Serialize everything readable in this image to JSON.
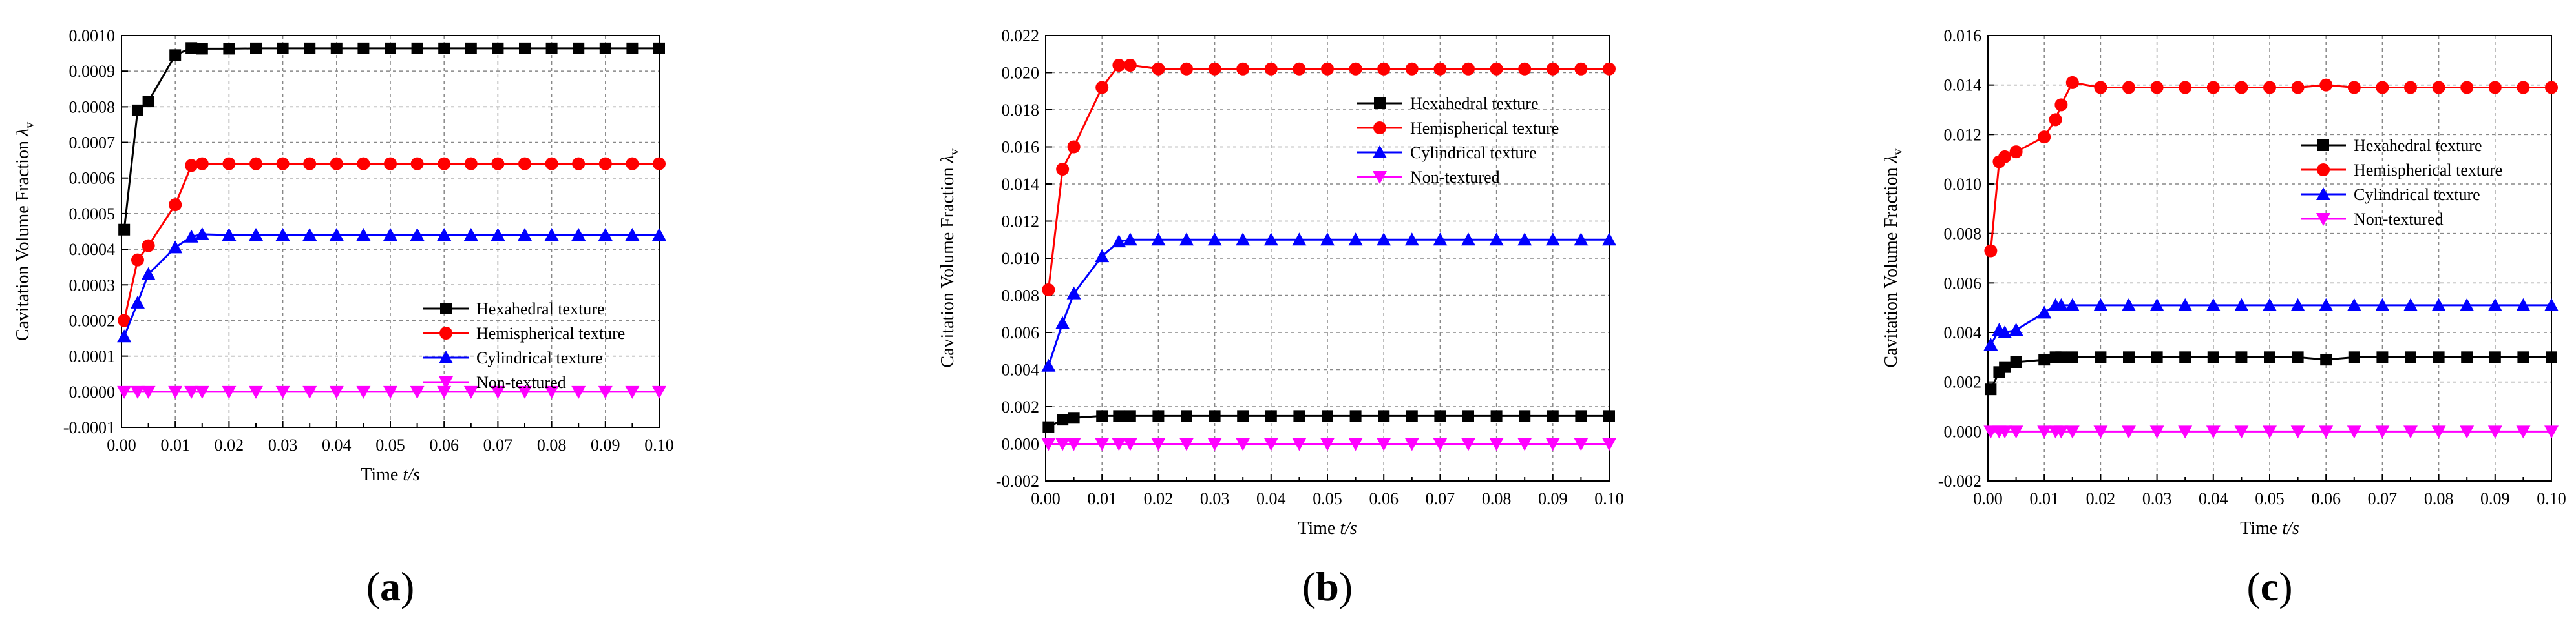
{
  "chart_data": [
    {
      "type": "line",
      "panel_label": "(a)",
      "panel_letter": "a",
      "xlabel": "Time t/s",
      "xlabel_text": "Time ",
      "xlabel_var": "t/s",
      "ylabel": "Cavitation Volume Fraction λv",
      "ylabel_text": "Cavitation Volume Fraction ",
      "ylabel_sym": "λ",
      "ylabel_sub": "v",
      "xlim": [
        0.0,
        0.1
      ],
      "ylim": [
        -0.0001,
        0.001
      ],
      "xticks": [
        0.0,
        0.01,
        0.02,
        0.03,
        0.04,
        0.05,
        0.06,
        0.07,
        0.08,
        0.09,
        0.1
      ],
      "xtick_labels": [
        "0.00",
        "0.01",
        "0.02",
        "0.03",
        "0.04",
        "0.05",
        "0.06",
        "0.07",
        "0.08",
        "0.09",
        "0.10"
      ],
      "yticks": [
        -0.0001,
        0.0,
        0.0001,
        0.0002,
        0.0003,
        0.0004,
        0.0005,
        0.0006,
        0.0007,
        0.0008,
        0.0009,
        0.001
      ],
      "ytick_labels": [
        "-0.0001",
        "0.0000",
        "0.0001",
        "0.0002",
        "0.0003",
        "0.0004",
        "0.0005",
        "0.0006",
        "0.0007",
        "0.0008",
        "0.0009",
        "0.0010"
      ],
      "grid": true,
      "legend_position": "lower-right",
      "series": [
        {
          "name": "Hexahedral texture",
          "color": "#000000",
          "marker": "square",
          "x": [
            0.0005,
            0.003,
            0.005,
            0.01,
            0.013,
            0.015,
            0.02,
            0.025,
            0.03,
            0.035,
            0.04,
            0.045,
            0.05,
            0.055,
            0.06,
            0.065,
            0.07,
            0.075,
            0.08,
            0.085,
            0.09,
            0.095,
            0.1
          ],
          "y": [
            0.000455,
            0.00079,
            0.000815,
            0.000945,
            0.000965,
            0.000963,
            0.000963,
            0.000964,
            0.000964,
            0.000964,
            0.000964,
            0.000964,
            0.000964,
            0.000964,
            0.000964,
            0.000964,
            0.000964,
            0.000964,
            0.000964,
            0.000964,
            0.000964,
            0.000964,
            0.000964
          ]
        },
        {
          "name": "Hemispherical texture",
          "color": "#ff0000",
          "marker": "circle",
          "x": [
            0.0005,
            0.003,
            0.005,
            0.01,
            0.013,
            0.015,
            0.02,
            0.025,
            0.03,
            0.035,
            0.04,
            0.045,
            0.05,
            0.055,
            0.06,
            0.065,
            0.07,
            0.075,
            0.08,
            0.085,
            0.09,
            0.095,
            0.1
          ],
          "y": [
            0.0002,
            0.00037,
            0.00041,
            0.000525,
            0.000635,
            0.00064,
            0.00064,
            0.00064,
            0.00064,
            0.00064,
            0.00064,
            0.00064,
            0.00064,
            0.00064,
            0.00064,
            0.00064,
            0.00064,
            0.00064,
            0.00064,
            0.00064,
            0.00064,
            0.00064,
            0.00064
          ]
        },
        {
          "name": "Cylindrical texture",
          "color": "#0000ff",
          "marker": "triangle-up",
          "x": [
            0.0005,
            0.003,
            0.005,
            0.01,
            0.013,
            0.015,
            0.02,
            0.025,
            0.03,
            0.035,
            0.04,
            0.045,
            0.05,
            0.055,
            0.06,
            0.065,
            0.07,
            0.075,
            0.08,
            0.085,
            0.09,
            0.095,
            0.1
          ],
          "y": [
            0.000155,
            0.00025,
            0.00033,
            0.000405,
            0.000435,
            0.000442,
            0.00044,
            0.00044,
            0.00044,
            0.00044,
            0.00044,
            0.00044,
            0.00044,
            0.00044,
            0.00044,
            0.00044,
            0.00044,
            0.00044,
            0.00044,
            0.00044,
            0.00044,
            0.00044,
            0.00044
          ]
        },
        {
          "name": "Non-textured",
          "color": "#ff00ff",
          "marker": "triangle-down",
          "x": [
            0.0005,
            0.003,
            0.005,
            0.01,
            0.013,
            0.015,
            0.02,
            0.025,
            0.03,
            0.035,
            0.04,
            0.045,
            0.05,
            0.055,
            0.06,
            0.065,
            0.07,
            0.075,
            0.08,
            0.085,
            0.09,
            0.095,
            0.1
          ],
          "y": [
            0,
            0,
            0,
            0,
            0,
            0,
            0,
            0,
            0,
            0,
            0,
            0,
            0,
            0,
            0,
            0,
            0,
            0,
            0,
            0,
            0,
            0,
            0
          ]
        }
      ]
    },
    {
      "type": "line",
      "panel_label": "(b)",
      "panel_letter": "b",
      "xlabel": "Time t/s",
      "xlabel_text": "Time ",
      "xlabel_var": "t/s",
      "ylabel": "Cavitation Volume Fraction λv",
      "ylabel_text": "Cavitation Volume Fraction ",
      "ylabel_sym": "λ",
      "ylabel_sub": "v",
      "xlim": [
        0.0,
        0.1
      ],
      "ylim": [
        -0.002,
        0.022
      ],
      "xticks": [
        0.0,
        0.01,
        0.02,
        0.03,
        0.04,
        0.05,
        0.06,
        0.07,
        0.08,
        0.09,
        0.1
      ],
      "xtick_labels": [
        "0.00",
        "0.01",
        "0.02",
        "0.03",
        "0.04",
        "0.05",
        "0.06",
        "0.07",
        "0.08",
        "0.09",
        "0.10"
      ],
      "yticks": [
        -0.002,
        0.0,
        0.002,
        0.004,
        0.006,
        0.008,
        0.01,
        0.012,
        0.014,
        0.016,
        0.018,
        0.02,
        0.022
      ],
      "ytick_labels": [
        "-0.002",
        "0.000",
        "0.002",
        "0.004",
        "0.006",
        "0.008",
        "0.010",
        "0.012",
        "0.014",
        "0.016",
        "0.018",
        "0.020",
        "0.022"
      ],
      "grid": true,
      "legend_position": "upper-right",
      "series": [
        {
          "name": "Hexahedral texture",
          "color": "#000000",
          "marker": "square",
          "x": [
            0.0005,
            0.003,
            0.005,
            0.01,
            0.013,
            0.015,
            0.02,
            0.025,
            0.03,
            0.035,
            0.04,
            0.045,
            0.05,
            0.055,
            0.06,
            0.065,
            0.07,
            0.075,
            0.08,
            0.085,
            0.09,
            0.095,
            0.1
          ],
          "y": [
            0.0009,
            0.0013,
            0.0014,
            0.0015,
            0.0015,
            0.0015,
            0.0015,
            0.0015,
            0.0015,
            0.0015,
            0.0015,
            0.0015,
            0.0015,
            0.0015,
            0.0015,
            0.0015,
            0.0015,
            0.0015,
            0.0015,
            0.0015,
            0.0015,
            0.0015,
            0.0015
          ]
        },
        {
          "name": "Hemispherical texture",
          "color": "#ff0000",
          "marker": "circle",
          "x": [
            0.0005,
            0.003,
            0.005,
            0.01,
            0.013,
            0.015,
            0.02,
            0.025,
            0.03,
            0.035,
            0.04,
            0.045,
            0.05,
            0.055,
            0.06,
            0.065,
            0.07,
            0.075,
            0.08,
            0.085,
            0.09,
            0.095,
            0.1
          ],
          "y": [
            0.0083,
            0.0148,
            0.016,
            0.0192,
            0.0204,
            0.0204,
            0.0202,
            0.0202,
            0.0202,
            0.0202,
            0.0202,
            0.0202,
            0.0202,
            0.0202,
            0.0202,
            0.0202,
            0.0202,
            0.0202,
            0.0202,
            0.0202,
            0.0202,
            0.0202,
            0.0202
          ]
        },
        {
          "name": "Cylindrical texture",
          "color": "#0000ff",
          "marker": "triangle-up",
          "x": [
            0.0005,
            0.003,
            0.005,
            0.01,
            0.013,
            0.015,
            0.02,
            0.025,
            0.03,
            0.035,
            0.04,
            0.045,
            0.05,
            0.055,
            0.06,
            0.065,
            0.07,
            0.075,
            0.08,
            0.085,
            0.09,
            0.095,
            0.1
          ],
          "y": [
            0.0042,
            0.0065,
            0.0081,
            0.0101,
            0.0109,
            0.011,
            0.011,
            0.011,
            0.011,
            0.011,
            0.011,
            0.011,
            0.011,
            0.011,
            0.011,
            0.011,
            0.011,
            0.011,
            0.011,
            0.011,
            0.011,
            0.011,
            0.011
          ]
        },
        {
          "name": "Non-textured",
          "color": "#ff00ff",
          "marker": "triangle-down",
          "x": [
            0.0005,
            0.003,
            0.005,
            0.01,
            0.013,
            0.015,
            0.02,
            0.025,
            0.03,
            0.035,
            0.04,
            0.045,
            0.05,
            0.055,
            0.06,
            0.065,
            0.07,
            0.075,
            0.08,
            0.085,
            0.09,
            0.095,
            0.1
          ],
          "y": [
            0,
            0,
            0,
            0,
            0,
            0,
            0,
            0,
            0,
            0,
            0,
            0,
            0,
            0,
            0,
            0,
            0,
            0,
            0,
            0,
            0,
            0,
            0
          ]
        }
      ]
    },
    {
      "type": "line",
      "panel_label": "(c)",
      "panel_letter": "c",
      "xlabel": "Time t/s",
      "xlabel_text": "Time ",
      "xlabel_var": "t/s",
      "ylabel": "Cavitation Volume Fraction λv",
      "ylabel_text": "Cavitation Volume Fraction ",
      "ylabel_sym": "λ",
      "ylabel_sub": "v",
      "xlim": [
        0.0,
        0.1
      ],
      "ylim": [
        -0.002,
        0.016
      ],
      "xticks": [
        0.0,
        0.01,
        0.02,
        0.03,
        0.04,
        0.05,
        0.06,
        0.07,
        0.08,
        0.09,
        0.1
      ],
      "xtick_labels": [
        "0.00",
        "0.01",
        "0.02",
        "0.03",
        "0.04",
        "0.05",
        "0.06",
        "0.07",
        "0.08",
        "0.09",
        "0.10"
      ],
      "yticks": [
        -0.002,
        0.0,
        0.002,
        0.004,
        0.006,
        0.008,
        0.01,
        0.012,
        0.014,
        0.016
      ],
      "ytick_labels": [
        "-0.002",
        "0.000",
        "0.002",
        "0.004",
        "0.006",
        "0.008",
        "0.010",
        "0.012",
        "0.014",
        "0.016"
      ],
      "grid": true,
      "legend_position": "right",
      "series": [
        {
          "name": "Hexahedral texture",
          "color": "#000000",
          "marker": "square",
          "x": [
            0.0005,
            0.002,
            0.003,
            0.005,
            0.01,
            0.012,
            0.013,
            0.015,
            0.02,
            0.025,
            0.03,
            0.035,
            0.04,
            0.045,
            0.05,
            0.055,
            0.06,
            0.065,
            0.07,
            0.075,
            0.08,
            0.085,
            0.09,
            0.095,
            0.1
          ],
          "y": [
            0.0017,
            0.0024,
            0.0026,
            0.0028,
            0.0029,
            0.003,
            0.003,
            0.003,
            0.003,
            0.003,
            0.003,
            0.003,
            0.003,
            0.003,
            0.003,
            0.003,
            0.0029,
            0.003,
            0.003,
            0.003,
            0.003,
            0.003,
            0.003,
            0.003,
            0.003
          ]
        },
        {
          "name": "Hemispherical texture",
          "color": "#ff0000",
          "marker": "circle",
          "x": [
            0.0005,
            0.002,
            0.003,
            0.005,
            0.01,
            0.012,
            0.013,
            0.015,
            0.02,
            0.025,
            0.03,
            0.035,
            0.04,
            0.045,
            0.05,
            0.055,
            0.06,
            0.065,
            0.07,
            0.075,
            0.08,
            0.085,
            0.09,
            0.095,
            0.1
          ],
          "y": [
            0.0073,
            0.0109,
            0.0111,
            0.0113,
            0.0119,
            0.0126,
            0.0132,
            0.0141,
            0.0139,
            0.0139,
            0.0139,
            0.0139,
            0.0139,
            0.0139,
            0.0139,
            0.0139,
            0.014,
            0.0139,
            0.0139,
            0.0139,
            0.0139,
            0.0139,
            0.0139,
            0.0139,
            0.0139
          ]
        },
        {
          "name": "Cylindrical texture",
          "color": "#0000ff",
          "marker": "triangle-up",
          "x": [
            0.0005,
            0.002,
            0.003,
            0.005,
            0.01,
            0.012,
            0.013,
            0.015,
            0.02,
            0.025,
            0.03,
            0.035,
            0.04,
            0.045,
            0.05,
            0.055,
            0.06,
            0.065,
            0.07,
            0.075,
            0.08,
            0.085,
            0.09,
            0.095,
            0.1
          ],
          "y": [
            0.0035,
            0.0041,
            0.004,
            0.0041,
            0.0048,
            0.0051,
            0.0051,
            0.0051,
            0.0051,
            0.0051,
            0.0051,
            0.0051,
            0.0051,
            0.0051,
            0.0051,
            0.0051,
            0.0051,
            0.0051,
            0.0051,
            0.0051,
            0.0051,
            0.0051,
            0.0051,
            0.0051,
            0.0051
          ]
        },
        {
          "name": "Non-textured",
          "color": "#ff00ff",
          "marker": "triangle-down",
          "x": [
            0.0005,
            0.002,
            0.003,
            0.005,
            0.01,
            0.012,
            0.013,
            0.015,
            0.02,
            0.025,
            0.03,
            0.035,
            0.04,
            0.045,
            0.05,
            0.055,
            0.06,
            0.065,
            0.07,
            0.075,
            0.08,
            0.085,
            0.09,
            0.095,
            0.1
          ],
          "y": [
            0,
            0,
            0,
            0,
            0,
            0,
            0,
            0,
            0,
            0,
            0,
            0,
            0,
            0,
            0,
            0,
            0,
            0,
            0,
            0,
            0,
            0,
            0,
            0,
            0
          ]
        }
      ]
    }
  ]
}
